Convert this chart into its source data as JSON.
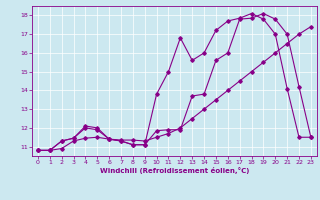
{
  "xlabel": "Windchill (Refroidissement éolien,°C)",
  "bg_color": "#cce8f0",
  "line_color": "#880088",
  "xlim": [
    -0.5,
    23.5
  ],
  "ylim": [
    10.5,
    18.5
  ],
  "xticks": [
    0,
    1,
    2,
    3,
    4,
    5,
    6,
    7,
    8,
    9,
    10,
    11,
    12,
    13,
    14,
    15,
    16,
    17,
    18,
    19,
    20,
    21,
    22,
    23
  ],
  "yticks": [
    11,
    12,
    13,
    14,
    15,
    16,
    17,
    18
  ],
  "series1_x": [
    0,
    1,
    2,
    3,
    4,
    5,
    6,
    7,
    8,
    9,
    10,
    11,
    12,
    13,
    14,
    15,
    16,
    17,
    18,
    19,
    20,
    21,
    22,
    23
  ],
  "series1_y": [
    10.8,
    10.8,
    10.9,
    11.3,
    11.45,
    11.5,
    11.4,
    11.35,
    11.35,
    11.3,
    11.5,
    11.7,
    12.0,
    12.5,
    13.0,
    13.5,
    14.0,
    14.5,
    15.0,
    15.5,
    16.0,
    16.5,
    17.0,
    17.4
  ],
  "series2_x": [
    0,
    1,
    2,
    3,
    4,
    5,
    6,
    7,
    8,
    9,
    10,
    11,
    12,
    13,
    14,
    15,
    16,
    17,
    18,
    19,
    20,
    21,
    22,
    23
  ],
  "series2_y": [
    10.8,
    10.8,
    11.3,
    11.45,
    12.0,
    11.9,
    11.4,
    11.3,
    11.1,
    11.1,
    13.8,
    15.0,
    16.8,
    15.6,
    16.0,
    17.2,
    17.7,
    17.85,
    18.1,
    17.8,
    17.0,
    14.1,
    11.5,
    11.5
  ],
  "series3_x": [
    0,
    1,
    2,
    3,
    4,
    5,
    6,
    7,
    8,
    9,
    10,
    11,
    12,
    13,
    14,
    15,
    16,
    17,
    18,
    19,
    20,
    21,
    22,
    23
  ],
  "series3_y": [
    10.8,
    10.8,
    11.3,
    11.45,
    12.1,
    12.0,
    11.4,
    11.3,
    11.1,
    11.1,
    11.85,
    11.9,
    11.9,
    13.7,
    13.8,
    15.6,
    16.0,
    17.8,
    17.85,
    18.1,
    17.8,
    17.0,
    14.2,
    11.5
  ]
}
